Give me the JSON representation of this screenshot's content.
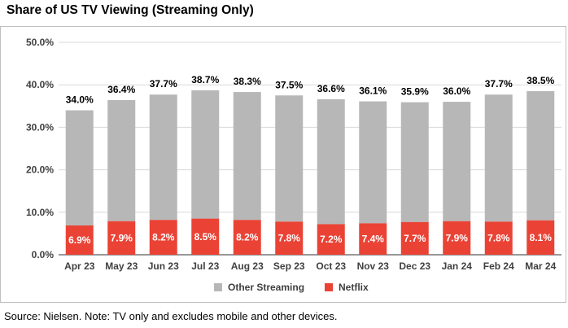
{
  "title": "Share of US TV Viewing (Streaming Only)",
  "source_note": "Source: Nielsen. Note: TV only and excludes mobile and other devices.",
  "colors": {
    "other": "#b7b7b7",
    "netflix": "#ea4335",
    "grid": "#d9d9d9",
    "axis": "#333333"
  },
  "chart_data": {
    "type": "bar",
    "stacked": true,
    "title": "Share of US TV Viewing (Streaming Only)",
    "categories": [
      "Apr 23",
      "May 23",
      "Jun 23",
      "Jul 23",
      "Aug 23",
      "Sep 23",
      "Oct 23",
      "Nov 23",
      "Dec 23",
      "Jan 24",
      "Feb 24",
      "Mar 24"
    ],
    "series": [
      {
        "name": "Netflix",
        "values": [
          6.9,
          7.9,
          8.2,
          8.5,
          8.2,
          7.8,
          7.2,
          7.4,
          7.7,
          7.9,
          7.8,
          8.1
        ],
        "labels": [
          "6.9%",
          "7.9%",
          "8.2%",
          "8.5%",
          "8.2%",
          "7.8%",
          "7.2%",
          "7.4%",
          "7.7%",
          "7.9%",
          "7.8%",
          "8.1%"
        ]
      },
      {
        "name": "Other Streaming",
        "values": [
          27.1,
          28.5,
          29.5,
          30.2,
          30.1,
          29.7,
          29.4,
          28.7,
          28.2,
          28.1,
          29.9,
          30.4
        ]
      }
    ],
    "totals": [
      34.0,
      36.4,
      37.7,
      38.7,
      38.3,
      37.5,
      36.6,
      36.1,
      35.9,
      36.0,
      37.7,
      38.5
    ],
    "total_labels": [
      "34.0%",
      "36.4%",
      "37.7%",
      "38.7%",
      "38.3%",
      "37.5%",
      "36.6%",
      "36.1%",
      "35.9%",
      "36.0%",
      "37.7%",
      "38.5%"
    ],
    "ylim": [
      0,
      50
    ],
    "yticks": [
      "0.0%",
      "10.0%",
      "20.0%",
      "30.0%",
      "40.0%",
      "50.0%"
    ],
    "ytick_values": [
      0,
      10,
      20,
      30,
      40,
      50
    ],
    "legend": [
      "Other Streaming",
      "Netflix"
    ],
    "legend_position": "bottom",
    "xlabel": "",
    "ylabel": ""
  }
}
